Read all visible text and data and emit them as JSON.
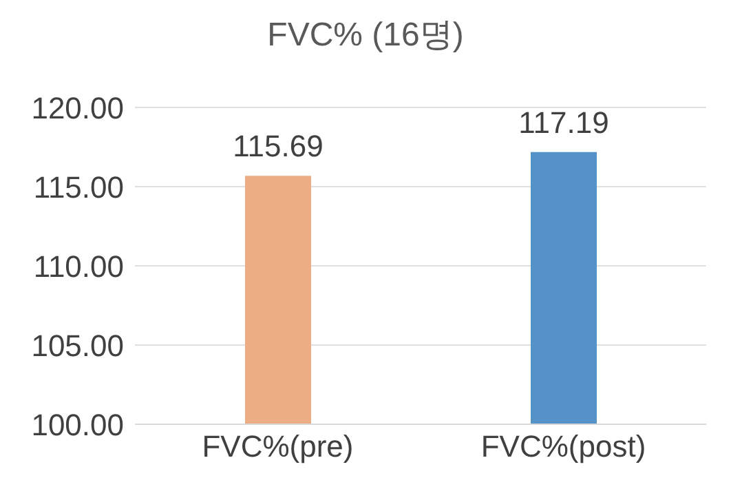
{
  "chart_data": {
    "type": "bar",
    "title": "FVC% (16명)",
    "categories": [
      "FVC%(pre)",
      "FVC%(post)"
    ],
    "values": [
      115.69,
      117.19
    ],
    "colors": [
      "#edad84",
      "#5592c8"
    ],
    "ylim": [
      100,
      120
    ],
    "yticks": [
      {
        "value": 100,
        "label": "100.00"
      },
      {
        "value": 105,
        "label": "105.00"
      },
      {
        "value": 110,
        "label": "110.00"
      },
      {
        "value": 115,
        "label": "115.00"
      },
      {
        "value": 120,
        "label": "120.00"
      }
    ],
    "grid": "y",
    "data_labels": true
  }
}
